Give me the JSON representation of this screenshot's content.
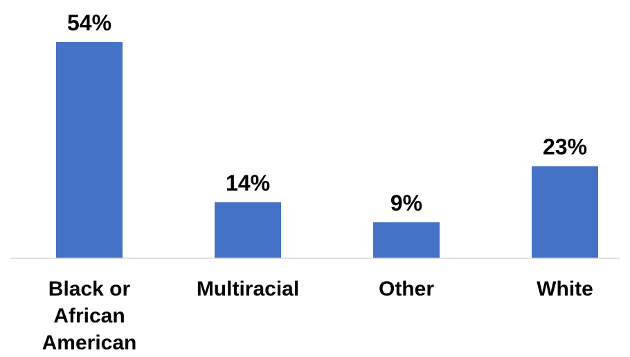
{
  "chart_data": {
    "type": "bar",
    "categories": [
      [
        "Black or",
        "African",
        "American"
      ],
      [
        "Multiracial"
      ],
      [
        "Other"
      ],
      [
        "White"
      ]
    ],
    "values": [
      54,
      14,
      9,
      23
    ],
    "data_labels": [
      "54%",
      "14%",
      "9%",
      "23%"
    ],
    "ylim": [
      0,
      54
    ],
    "grid": false,
    "legend": "none",
    "bar_color": "#4472C4",
    "axis_color": "#D9D9D9"
  }
}
